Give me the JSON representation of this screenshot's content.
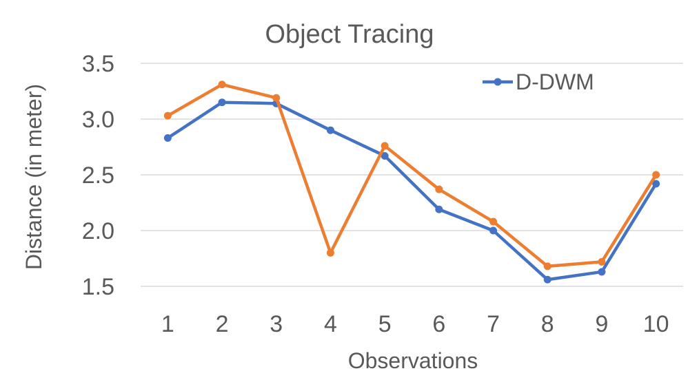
{
  "chart_data": {
    "type": "line",
    "title": "Object Tracing",
    "xlabel": "Observations",
    "ylabel": "Distance (in meter)",
    "categories": [
      "1",
      "2",
      "3",
      "4",
      "5",
      "6",
      "7",
      "8",
      "9",
      "10"
    ],
    "ylim": [
      1.5,
      3.5
    ],
    "yticks": [
      "1.5",
      "2.0",
      "2.5",
      "3.0",
      "3.5"
    ],
    "grid": true,
    "legend_position": "top-right",
    "series": [
      {
        "name": "D-DWM",
        "color": "#4472C4",
        "values": [
          2.83,
          3.15,
          3.14,
          2.9,
          2.67,
          2.19,
          2.0,
          1.56,
          1.63,
          2.42
        ],
        "show_in_legend": true
      },
      {
        "color": "#ED7D31",
        "values": [
          3.03,
          3.31,
          3.19,
          1.8,
          2.76,
          2.37,
          2.08,
          1.68,
          1.72,
          2.5
        ],
        "show_in_legend": false
      }
    ]
  }
}
